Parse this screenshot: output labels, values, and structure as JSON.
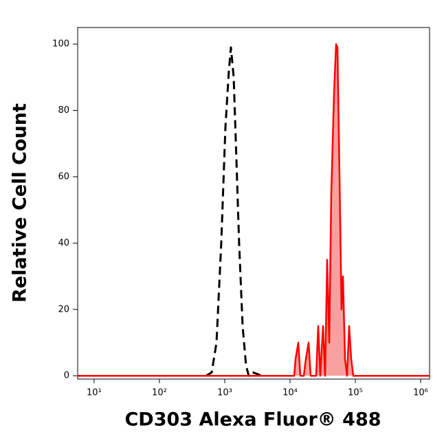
{
  "chart_data": {
    "type": "line",
    "x_label": "CD303 Alexa Fluor® 488",
    "y_label": "Relative Cell Count",
    "xscale": "log",
    "xlim": [
      5.6,
      1370000
    ],
    "ylim": [
      -1,
      105
    ],
    "xticks": [
      {
        "value": 10,
        "label": "10¹"
      },
      {
        "value": 100,
        "label": "10²"
      },
      {
        "value": 1000,
        "label": "10³"
      },
      {
        "value": 10000,
        "label": "10⁴"
      },
      {
        "value": 100000,
        "label": "10⁵"
      },
      {
        "value": 1000000,
        "label": "10⁶"
      }
    ],
    "yticks": [
      0,
      20,
      40,
      60,
      80,
      100
    ],
    "series": [
      {
        "color": "#000000",
        "style": "dashed",
        "x": [
          520,
          631,
          748,
          885,
          1025,
          1157,
          1245,
          1372,
          1510,
          1663,
          1879,
          2120,
          2335,
          2702,
          3200,
          3610
        ],
        "values": [
          0,
          1,
          10,
          40,
          75,
          92,
          99,
          90,
          65,
          40,
          15,
          3,
          0,
          1,
          0.5,
          0
        ]
      },
      {
        "color": "#ff0000",
        "fill": "#f7a0a0",
        "style": "solid",
        "x": [
          5.6,
          11560,
          12140,
          13370,
          14380,
          16250,
          17460,
          19240,
          20700,
          25120,
          27040,
          29040,
          32000,
          34430,
          37000,
          39810,
          42850,
          47200,
          50700,
          53210,
          57280,
          61500,
          64700,
          69500,
          74800,
          80400,
          86500,
          92900,
          1370000
        ],
        "values": [
          0,
          0,
          5,
          10,
          0,
          0,
          5,
          10,
          0,
          0,
          15,
          0,
          15,
          0,
          35,
          10,
          55,
          85,
          100,
          99,
          60,
          20,
          30,
          5,
          0,
          15,
          5,
          0,
          0
        ]
      }
    ]
  }
}
